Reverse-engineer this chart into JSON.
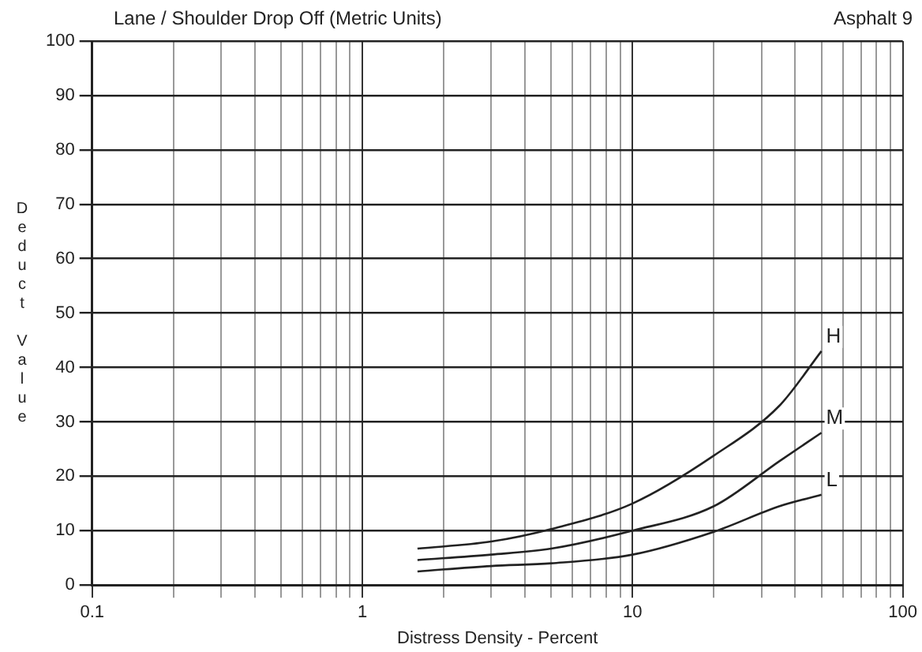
{
  "chart_data": {
    "type": "line",
    "title": "Lane / Shoulder Drop Off (Metric Units)",
    "subtitle": "Asphalt 9",
    "xlabel": "Distress Density - Percent",
    "ylabel": "Deduct Value",
    "log": "x",
    "xlim": [
      0.1,
      100
    ],
    "ylim": [
      0,
      100
    ],
    "xticks": [
      0.1,
      {
        "value": 0.2,
        "label": null
      },
      {
        "value": 0.3,
        "label": null
      },
      {
        "value": 0.4,
        "label": null
      },
      {
        "value": 0.5,
        "label": null
      },
      {
        "value": 0.6,
        "label": null
      },
      {
        "value": 0.7,
        "label": null
      },
      {
        "value": 0.8,
        "label": null
      },
      {
        "value": 0.9,
        "label": null
      },
      1,
      {
        "value": 2,
        "label": null
      },
      {
        "value": 3,
        "label": null
      },
      {
        "value": 4,
        "label": null
      },
      {
        "value": 5,
        "label": null
      },
      {
        "value": 6,
        "label": null
      },
      {
        "value": 7,
        "label": null
      },
      {
        "value": 8,
        "label": null
      },
      {
        "value": 9,
        "label": null
      },
      10,
      {
        "value": 20,
        "label": null
      },
      {
        "value": 30,
        "label": null
      },
      {
        "value": 40,
        "label": null
      },
      {
        "value": 50,
        "label": null
      },
      {
        "value": 60,
        "label": null
      },
      {
        "value": 70,
        "label": null
      },
      {
        "value": 80,
        "label": null
      },
      {
        "value": 90,
        "label": null
      },
      100
    ],
    "yticks": [
      0,
      10,
      20,
      30,
      40,
      50,
      60,
      70,
      80,
      90,
      100
    ],
    "grid": true,
    "legend": false,
    "marker": "none",
    "line_style": "solid",
    "series": [
      {
        "name": "H",
        "color": "#222222",
        "x": [
          1.6,
          3,
          5,
          10,
          20,
          35,
          50
        ],
        "values": [
          6.7,
          8,
          10.3,
          15,
          23.8,
          33,
          43
        ]
      },
      {
        "name": "M",
        "color": "#222222",
        "x": [
          1.6,
          3,
          5,
          10,
          20,
          35,
          50
        ],
        "values": [
          4.6,
          5.6,
          6.7,
          10,
          14.5,
          22.8,
          28
        ]
      },
      {
        "name": "L",
        "color": "#222222",
        "x": [
          1.6,
          3,
          5,
          10,
          20,
          35,
          50
        ],
        "values": [
          2.5,
          3.5,
          4,
          5.6,
          9.8,
          14.5,
          16.6
        ]
      }
    ]
  }
}
